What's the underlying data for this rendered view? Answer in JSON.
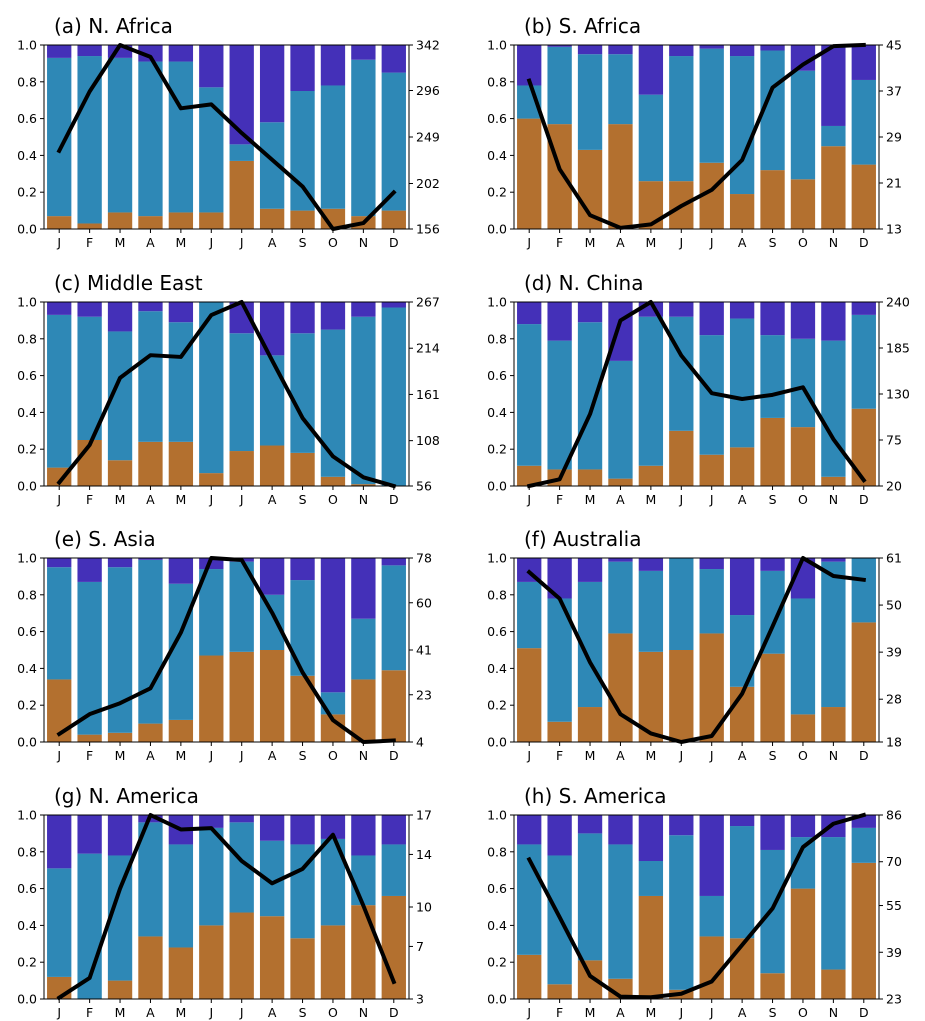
{
  "colors": {
    "bottom": "#b3702f",
    "middle": "#2e88b6",
    "top": "#4430b8",
    "line": "#000000"
  },
  "chart_data": [
    {
      "type": "bar",
      "stacked": true,
      "secondary_line": true,
      "title": "(a) N. Africa",
      "categories": [
        "J",
        "F",
        "M",
        "A",
        "M",
        "J",
        "J",
        "A",
        "S",
        "O",
        "N",
        "D"
      ],
      "ylim": [
        0,
        1
      ],
      "yticks": [
        "0.0",
        "0.2",
        "0.4",
        "0.6",
        "0.8",
        "1.0"
      ],
      "y2lim": [
        156,
        342
      ],
      "y2ticks": [
        "156",
        "202",
        "249",
        "296",
        "342"
      ],
      "series": [
        {
          "values": [
            0.07,
            0.03,
            0.09,
            0.07,
            0.09,
            0.09,
            0.37,
            0.11,
            0.1,
            0.11,
            0.07,
            0.1
          ]
        },
        {
          "values": [
            0.86,
            0.91,
            0.84,
            0.84,
            0.82,
            0.68,
            0.09,
            0.47,
            0.65,
            0.67,
            0.85,
            0.75
          ]
        },
        {
          "values": [
            0.07,
            0.06,
            0.07,
            0.09,
            0.09,
            0.23,
            0.54,
            0.42,
            0.25,
            0.22,
            0.08,
            0.15
          ]
        }
      ],
      "line": [
        235,
        295,
        342,
        330,
        278,
        282,
        253,
        226,
        199,
        156,
        162,
        193
      ]
    },
    {
      "type": "bar",
      "stacked": true,
      "secondary_line": true,
      "title": "(b) S. Africa",
      "categories": [
        "J",
        "F",
        "M",
        "A",
        "M",
        "J",
        "J",
        "A",
        "S",
        "O",
        "N",
        "D"
      ],
      "ylim": [
        0,
        1
      ],
      "yticks": [
        "0.0",
        "0.2",
        "0.4",
        "0.6",
        "0.8",
        "1.0"
      ],
      "y2lim": [
        13,
        45
      ],
      "y2ticks": [
        "13",
        "21",
        "29",
        "37",
        "45"
      ],
      "series": [
        {
          "values": [
            0.6,
            0.57,
            0.43,
            0.57,
            0.26,
            0.26,
            0.36,
            0.19,
            0.32,
            0.27,
            0.45,
            0.35
          ]
        },
        {
          "values": [
            0.18,
            0.42,
            0.52,
            0.38,
            0.47,
            0.68,
            0.62,
            0.75,
            0.65,
            0.59,
            0.11,
            0.46
          ]
        },
        {
          "values": [
            0.22,
            0.01,
            0.05,
            0.05,
            0.27,
            0.06,
            0.02,
            0.06,
            0.03,
            0.14,
            0.44,
            0.19
          ]
        }
      ],
      "line": [
        38.8,
        23.4,
        15.4,
        13.2,
        13.8,
        17.0,
        19.8,
        25.0,
        37.6,
        41.6,
        44.8,
        45.0
      ]
    },
    {
      "type": "bar",
      "stacked": true,
      "secondary_line": true,
      "title": "(c) Middle East",
      "categories": [
        "J",
        "F",
        "M",
        "A",
        "M",
        "J",
        "J",
        "A",
        "S",
        "O",
        "N",
        "D"
      ],
      "ylim": [
        0,
        1
      ],
      "yticks": [
        "0.0",
        "0.2",
        "0.4",
        "0.6",
        "0.8",
        "1.0"
      ],
      "y2lim": [
        56,
        267
      ],
      "y2ticks": [
        "56",
        "108",
        "161",
        "214",
        "267"
      ],
      "series": [
        {
          "values": [
            0.1,
            0.25,
            0.14,
            0.24,
            0.24,
            0.07,
            0.19,
            0.22,
            0.18,
            0.05,
            0.01,
            0.0
          ]
        },
        {
          "values": [
            0.83,
            0.67,
            0.7,
            0.71,
            0.65,
            0.93,
            0.64,
            0.49,
            0.65,
            0.8,
            0.91,
            0.97
          ]
        },
        {
          "values": [
            0.07,
            0.08,
            0.16,
            0.05,
            0.11,
            0.0,
            0.17,
            0.29,
            0.17,
            0.15,
            0.08,
            0.03
          ]
        }
      ],
      "line": [
        60,
        103,
        180,
        206,
        204,
        252,
        267,
        200,
        134,
        90,
        66,
        56
      ]
    },
    {
      "type": "bar",
      "stacked": true,
      "secondary_line": true,
      "title": "(d) N. China",
      "categories": [
        "J",
        "F",
        "M",
        "A",
        "M",
        "J",
        "J",
        "A",
        "S",
        "O",
        "N",
        "D"
      ],
      "ylim": [
        0,
        1
      ],
      "yticks": [
        "0.0",
        "0.2",
        "0.4",
        "0.6",
        "0.8",
        "1.0"
      ],
      "y2lim": [
        20,
        240
      ],
      "y2ticks": [
        "20",
        "75",
        "130",
        "185",
        "240"
      ],
      "series": [
        {
          "values": [
            0.11,
            0.09,
            0.09,
            0.04,
            0.11,
            0.3,
            0.17,
            0.21,
            0.37,
            0.32,
            0.05,
            0.42
          ]
        },
        {
          "values": [
            0.77,
            0.7,
            0.8,
            0.64,
            0.81,
            0.62,
            0.65,
            0.7,
            0.45,
            0.48,
            0.74,
            0.51
          ]
        },
        {
          "values": [
            0.12,
            0.21,
            0.11,
            0.32,
            0.08,
            0.08,
            0.18,
            0.09,
            0.18,
            0.2,
            0.21,
            0.07
          ]
        }
      ],
      "line": [
        20,
        28,
        106,
        218,
        240,
        176,
        131,
        124,
        129,
        138,
        76,
        27
      ]
    },
    {
      "type": "bar",
      "stacked": true,
      "secondary_line": true,
      "title": "(e) S. Asia",
      "categories": [
        "J",
        "F",
        "M",
        "A",
        "M",
        "J",
        "J",
        "A",
        "S",
        "O",
        "N",
        "D"
      ],
      "ylim": [
        0,
        1
      ],
      "yticks": [
        "0.0",
        "0.2",
        "0.4",
        "0.6",
        "0.8",
        "1.0"
      ],
      "y2lim": [
        4,
        78
      ],
      "y2ticks": [
        "4",
        "23",
        "41",
        "60",
        "78"
      ],
      "series": [
        {
          "values": [
            0.34,
            0.04,
            0.05,
            0.1,
            0.12,
            0.47,
            0.49,
            0.5,
            0.36,
            0.15,
            0.34,
            0.39
          ]
        },
        {
          "values": [
            0.61,
            0.83,
            0.9,
            0.89,
            0.74,
            0.47,
            0.49,
            0.3,
            0.52,
            0.12,
            0.33,
            0.57
          ]
        },
        {
          "values": [
            0.05,
            0.13,
            0.05,
            0.01,
            0.14,
            0.06,
            0.02,
            0.2,
            0.12,
            0.73,
            0.33,
            0.04
          ]
        }
      ],
      "line": [
        7.2,
        15.2,
        19.6,
        25.6,
        48.0,
        78.0,
        77.2,
        56.0,
        32.0,
        12.8,
        4.0,
        4.6
      ]
    },
    {
      "type": "bar",
      "stacked": true,
      "secondary_line": true,
      "title": "(f) Australia",
      "categories": [
        "J",
        "F",
        "M",
        "A",
        "M",
        "J",
        "J",
        "A",
        "S",
        "O",
        "N",
        "D"
      ],
      "ylim": [
        0,
        1
      ],
      "yticks": [
        "0.0",
        "0.2",
        "0.4",
        "0.6",
        "0.8",
        "1.0"
      ],
      "y2lim": [
        18,
        61
      ],
      "y2ticks": [
        "18",
        "28",
        "39",
        "50",
        "61"
      ],
      "series": [
        {
          "values": [
            0.51,
            0.11,
            0.19,
            0.59,
            0.49,
            0.5,
            0.59,
            0.3,
            0.48,
            0.15,
            0.19,
            0.65
          ]
        },
        {
          "values": [
            0.36,
            0.67,
            0.68,
            0.39,
            0.44,
            0.5,
            0.35,
            0.39,
            0.45,
            0.63,
            0.79,
            0.35
          ]
        },
        {
          "values": [
            0.13,
            0.22,
            0.13,
            0.02,
            0.07,
            0.0,
            0.06,
            0.31,
            0.07,
            0.22,
            0.02,
            0.0
          ]
        }
      ],
      "line": [
        57.7,
        51.5,
        36.6,
        24.5,
        20.0,
        18.0,
        19.4,
        29.3,
        45.0,
        61.0,
        56.8,
        55.9
      ]
    },
    {
      "type": "bar",
      "stacked": true,
      "secondary_line": true,
      "title": "(g) N. America",
      "categories": [
        "J",
        "F",
        "M",
        "A",
        "M",
        "J",
        "J",
        "A",
        "S",
        "O",
        "N",
        "D"
      ],
      "ylim": [
        0,
        1
      ],
      "yticks": [
        "0.0",
        "0.2",
        "0.4",
        "0.6",
        "0.8",
        "1.0"
      ],
      "y2lim": [
        3,
        17
      ],
      "y2ticks": [
        "3",
        "7",
        "10",
        "14",
        "17"
      ],
      "series": [
        {
          "values": [
            0.12,
            0.0,
            0.1,
            0.34,
            0.28,
            0.4,
            0.47,
            0.45,
            0.33,
            0.4,
            0.51,
            0.56
          ]
        },
        {
          "values": [
            0.59,
            0.79,
            0.68,
            0.62,
            0.56,
            0.53,
            0.49,
            0.41,
            0.51,
            0.47,
            0.27,
            0.28
          ]
        },
        {
          "values": [
            0.29,
            0.21,
            0.22,
            0.04,
            0.16,
            0.07,
            0.04,
            0.14,
            0.16,
            0.13,
            0.22,
            0.16
          ]
        }
      ],
      "line": [
        3.1,
        4.6,
        11.4,
        17.0,
        15.9,
        16.0,
        13.5,
        11.8,
        12.9,
        15.5,
        10.1,
        4.3
      ]
    },
    {
      "type": "bar",
      "stacked": true,
      "secondary_line": true,
      "title": "(h) S. America",
      "categories": [
        "J",
        "F",
        "M",
        "A",
        "M",
        "J",
        "J",
        "A",
        "S",
        "O",
        "N",
        "D"
      ],
      "ylim": [
        0,
        1
      ],
      "yticks": [
        "0.0",
        "0.2",
        "0.4",
        "0.6",
        "0.8",
        "1.0"
      ],
      "y2lim": [
        23,
        86
      ],
      "y2ticks": [
        "23",
        "39",
        "55",
        "70",
        "86"
      ],
      "series": [
        {
          "values": [
            0.24,
            0.08,
            0.21,
            0.11,
            0.56,
            0.05,
            0.34,
            0.33,
            0.14,
            0.6,
            0.16,
            0.74
          ]
        },
        {
          "values": [
            0.6,
            0.7,
            0.69,
            0.73,
            0.19,
            0.84,
            0.22,
            0.61,
            0.67,
            0.28,
            0.72,
            0.19
          ]
        },
        {
          "values": [
            0.16,
            0.22,
            0.1,
            0.16,
            0.25,
            0.11,
            0.44,
            0.06,
            0.19,
            0.12,
            0.12,
            0.07
          ]
        }
      ],
      "line": [
        70.8,
        51.0,
        30.9,
        23.8,
        23.6,
        24.8,
        29.0,
        41.5,
        54.0,
        75.0,
        83.0,
        86.0
      ]
    }
  ]
}
